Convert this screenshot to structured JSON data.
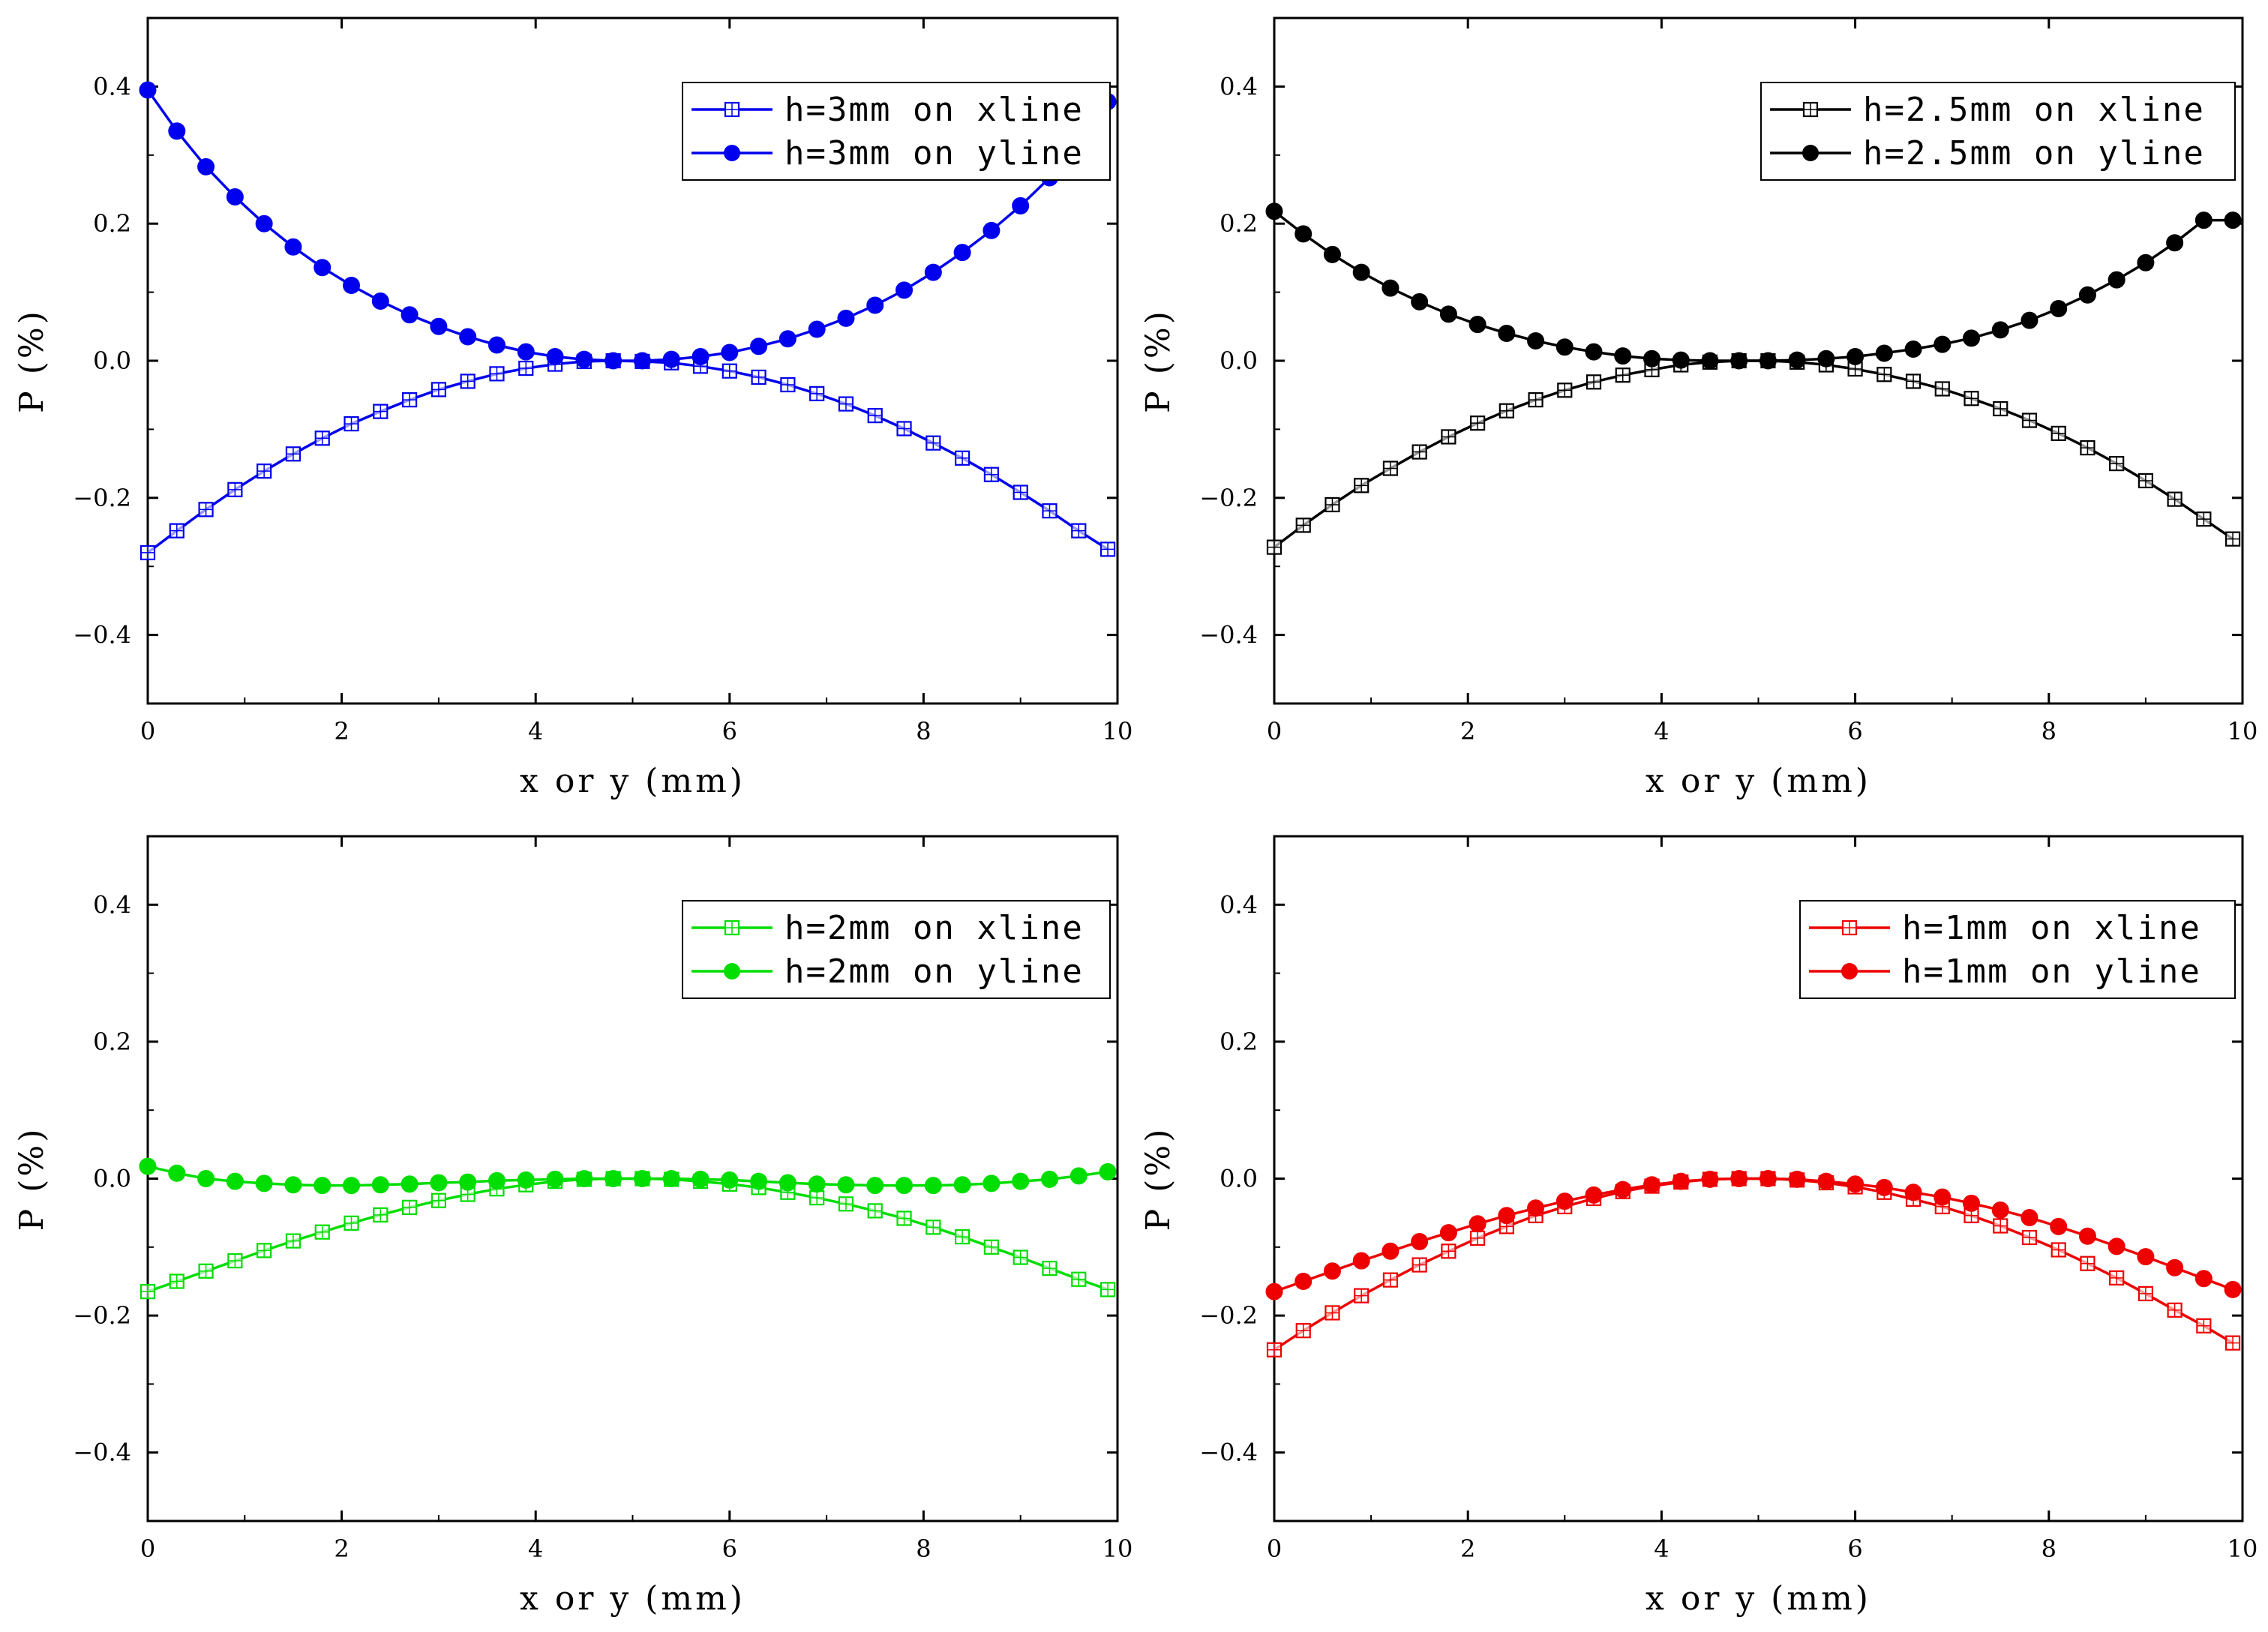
{
  "chart_data": [
    {
      "type": "line",
      "title": "",
      "xlabel": "x or y (mm)",
      "ylabel": "P (%)",
      "xlim": [
        0,
        10
      ],
      "ylim": [
        -0.5,
        0.5
      ],
      "xticks": [
        0,
        2,
        4,
        6,
        8,
        10
      ],
      "xtick_labels": [
        "0",
        "2",
        "4",
        "6",
        "8",
        "10"
      ],
      "yticks": [
        -0.4,
        -0.2,
        0.0,
        0.2,
        0.4
      ],
      "ytick_labels": [
        "−0.4",
        "−0.2",
        "0.0",
        "0.2",
        "0.4"
      ],
      "color": "#0000ee",
      "legend_position": "top-right",
      "series": [
        {
          "name": "h=3mm on xline",
          "marker": "open-square",
          "x": [
            0,
            0.3,
            0.6,
            0.9,
            1.2,
            1.5,
            1.8,
            2.1,
            2.4,
            2.7,
            3.0,
            3.3,
            3.6,
            3.9,
            4.2,
            4.5,
            4.8,
            5.1,
            5.4,
            5.7,
            6.0,
            6.3,
            6.6,
            6.9,
            7.2,
            7.5,
            7.8,
            8.1,
            8.4,
            8.7,
            9.0,
            9.3,
            9.6,
            9.9
          ],
          "y": [
            -0.28,
            -0.248,
            -0.217,
            -0.188,
            -0.161,
            -0.136,
            -0.113,
            -0.092,
            -0.074,
            -0.057,
            -0.042,
            -0.03,
            -0.019,
            -0.011,
            -0.005,
            -0.001,
            0.0,
            -0.001,
            -0.003,
            -0.008,
            -0.015,
            -0.024,
            -0.035,
            -0.048,
            -0.063,
            -0.08,
            -0.099,
            -0.12,
            -0.142,
            -0.166,
            -0.192,
            -0.219,
            -0.248,
            -0.275
          ]
        },
        {
          "name": "h=3mm on yline",
          "marker": "filled-circle",
          "x": [
            0,
            0.3,
            0.6,
            0.9,
            1.2,
            1.5,
            1.8,
            2.1,
            2.4,
            2.7,
            3.0,
            3.3,
            3.6,
            3.9,
            4.2,
            4.5,
            4.8,
            5.1,
            5.4,
            5.7,
            6.0,
            6.3,
            6.6,
            6.9,
            7.2,
            7.5,
            7.8,
            8.1,
            8.4,
            8.7,
            9.0,
            9.3,
            9.6,
            9.9
          ],
          "y": [
            0.395,
            0.335,
            0.283,
            0.239,
            0.2,
            0.166,
            0.136,
            0.11,
            0.087,
            0.067,
            0.05,
            0.035,
            0.023,
            0.013,
            0.006,
            0.002,
            0.0,
            0.0,
            0.002,
            0.006,
            0.012,
            0.021,
            0.032,
            0.046,
            0.062,
            0.081,
            0.103,
            0.129,
            0.158,
            0.19,
            0.226,
            0.267,
            0.318,
            0.378
          ]
        }
      ]
    },
    {
      "type": "line",
      "title": "",
      "xlabel": "x or y (mm)",
      "ylabel": "P (%)",
      "xlim": [
        0,
        10
      ],
      "ylim": [
        -0.5,
        0.5
      ],
      "xticks": [
        0,
        2,
        4,
        6,
        8,
        10
      ],
      "xtick_labels": [
        "0",
        "2",
        "4",
        "6",
        "8",
        "10"
      ],
      "yticks": [
        -0.4,
        -0.2,
        0.0,
        0.2,
        0.4
      ],
      "ytick_labels": [
        "−0.4",
        "−0.2",
        "0.0",
        "0.2",
        "0.4"
      ],
      "color": "#000000",
      "legend_position": "top-right",
      "series": [
        {
          "name": "h=2.5mm on xline",
          "marker": "open-square",
          "x": [
            0,
            0.3,
            0.6,
            0.9,
            1.2,
            1.5,
            1.8,
            2.1,
            2.4,
            2.7,
            3.0,
            3.3,
            3.6,
            3.9,
            4.2,
            4.5,
            4.8,
            5.1,
            5.4,
            5.7,
            6.0,
            6.3,
            6.6,
            6.9,
            7.2,
            7.5,
            7.8,
            8.1,
            8.4,
            8.7,
            9.0,
            9.3,
            9.6,
            9.9
          ],
          "y": [
            -0.272,
            -0.24,
            -0.21,
            -0.182,
            -0.157,
            -0.133,
            -0.111,
            -0.091,
            -0.073,
            -0.057,
            -0.043,
            -0.031,
            -0.021,
            -0.013,
            -0.006,
            -0.002,
            0.0,
            0.0,
            -0.002,
            -0.006,
            -0.012,
            -0.02,
            -0.03,
            -0.041,
            -0.055,
            -0.07,
            -0.087,
            -0.106,
            -0.127,
            -0.15,
            -0.175,
            -0.202,
            -0.231,
            -0.26
          ]
        },
        {
          "name": "h=2.5mm on yline",
          "marker": "filled-circle",
          "x": [
            0,
            0.3,
            0.6,
            0.9,
            1.2,
            1.5,
            1.8,
            2.1,
            2.4,
            2.7,
            3.0,
            3.3,
            3.6,
            3.9,
            4.2,
            4.5,
            4.8,
            5.1,
            5.4,
            5.7,
            6.0,
            6.3,
            6.6,
            6.9,
            7.2,
            7.5,
            7.8,
            8.1,
            8.4,
            8.7,
            9.0,
            9.3,
            9.6,
            9.9
          ],
          "y": [
            0.218,
            0.185,
            0.155,
            0.129,
            0.106,
            0.086,
            0.068,
            0.053,
            0.04,
            0.029,
            0.02,
            0.013,
            0.007,
            0.003,
            0.001,
            0.0,
            0.0,
            0.0,
            0.001,
            0.003,
            0.006,
            0.011,
            0.017,
            0.024,
            0.033,
            0.045,
            0.059,
            0.076,
            0.096,
            0.118,
            0.143,
            0.172,
            0.205,
            0.205
          ]
        }
      ]
    },
    {
      "type": "line",
      "title": "",
      "xlabel": "x or y (mm)",
      "ylabel": "P (%)",
      "xlim": [
        0,
        10
      ],
      "ylim": [
        -0.5,
        0.5
      ],
      "xticks": [
        0,
        2,
        4,
        6,
        8,
        10
      ],
      "xtick_labels": [
        "0",
        "2",
        "4",
        "6",
        "8",
        "10"
      ],
      "yticks": [
        -0.4,
        -0.2,
        0.0,
        0.2,
        0.4
      ],
      "ytick_labels": [
        "−0.4",
        "−0.2",
        "0.0",
        "0.2",
        "0.4"
      ],
      "color": "#00dd00",
      "legend_position": "top-right",
      "series": [
        {
          "name": "h=2mm on xline",
          "marker": "open-square",
          "x": [
            0,
            0.3,
            0.6,
            0.9,
            1.2,
            1.5,
            1.8,
            2.1,
            2.4,
            2.7,
            3.0,
            3.3,
            3.6,
            3.9,
            4.2,
            4.5,
            4.8,
            5.1,
            5.4,
            5.7,
            6.0,
            6.3,
            6.6,
            6.9,
            7.2,
            7.5,
            7.8,
            8.1,
            8.4,
            8.7,
            9.0,
            9.3,
            9.6,
            9.9
          ],
          "y": [
            -0.165,
            -0.15,
            -0.135,
            -0.12,
            -0.105,
            -0.091,
            -0.078,
            -0.065,
            -0.053,
            -0.042,
            -0.032,
            -0.023,
            -0.015,
            -0.009,
            -0.004,
            -0.001,
            0.0,
            0.0,
            -0.001,
            -0.004,
            -0.008,
            -0.013,
            -0.02,
            -0.028,
            -0.037,
            -0.047,
            -0.058,
            -0.071,
            -0.085,
            -0.1,
            -0.115,
            -0.131,
            -0.147,
            -0.162
          ]
        },
        {
          "name": "h=2mm on yline",
          "marker": "filled-circle",
          "x": [
            0,
            0.3,
            0.6,
            0.9,
            1.2,
            1.5,
            1.8,
            2.1,
            2.4,
            2.7,
            3.0,
            3.3,
            3.6,
            3.9,
            4.2,
            4.5,
            4.8,
            5.1,
            5.4,
            5.7,
            6.0,
            6.3,
            6.6,
            6.9,
            7.2,
            7.5,
            7.8,
            8.1,
            8.4,
            8.7,
            9.0,
            9.3,
            9.6,
            9.9
          ],
          "y": [
            0.018,
            0.008,
            0.0,
            -0.004,
            -0.007,
            -0.009,
            -0.01,
            -0.01,
            -0.009,
            -0.008,
            -0.006,
            -0.005,
            -0.003,
            -0.002,
            -0.001,
            0.0,
            0.0,
            0.0,
            0.0,
            -0.001,
            -0.002,
            -0.004,
            -0.006,
            -0.008,
            -0.009,
            -0.01,
            -0.01,
            -0.01,
            -0.009,
            -0.007,
            -0.004,
            -0.001,
            0.004,
            0.01
          ]
        }
      ]
    },
    {
      "type": "line",
      "title": "",
      "xlabel": "x or y (mm)",
      "ylabel": "P (%)",
      "xlim": [
        0,
        10
      ],
      "ylim": [
        -0.5,
        0.5
      ],
      "xticks": [
        0,
        2,
        4,
        6,
        8,
        10
      ],
      "xtick_labels": [
        "0",
        "2",
        "4",
        "6",
        "8",
        "10"
      ],
      "yticks": [
        -0.4,
        -0.2,
        0.0,
        0.2,
        0.4
      ],
      "ytick_labels": [
        "−0.4",
        "−0.2",
        "0.0",
        "0.2",
        "0.4"
      ],
      "color": "#ee0000",
      "legend_position": "top-right",
      "series": [
        {
          "name": "h=1mm on xline",
          "marker": "open-square",
          "x": [
            0,
            0.3,
            0.6,
            0.9,
            1.2,
            1.5,
            1.8,
            2.1,
            2.4,
            2.7,
            3.0,
            3.3,
            3.6,
            3.9,
            4.2,
            4.5,
            4.8,
            5.1,
            5.4,
            5.7,
            6.0,
            6.3,
            6.6,
            6.9,
            7.2,
            7.5,
            7.8,
            8.1,
            8.4,
            8.7,
            9.0,
            9.3,
            9.6,
            9.9
          ],
          "y": [
            -0.25,
            -0.222,
            -0.196,
            -0.171,
            -0.148,
            -0.126,
            -0.106,
            -0.087,
            -0.07,
            -0.054,
            -0.041,
            -0.029,
            -0.019,
            -0.011,
            -0.005,
            -0.001,
            0.0,
            0.0,
            -0.002,
            -0.006,
            -0.012,
            -0.02,
            -0.03,
            -0.041,
            -0.054,
            -0.069,
            -0.086,
            -0.104,
            -0.124,
            -0.145,
            -0.168,
            -0.192,
            -0.215,
            -0.24
          ]
        },
        {
          "name": "h=1mm on yline",
          "marker": "filled-circle",
          "x": [
            0,
            0.3,
            0.6,
            0.9,
            1.2,
            1.5,
            1.8,
            2.1,
            2.4,
            2.7,
            3.0,
            3.3,
            3.6,
            3.9,
            4.2,
            4.5,
            4.8,
            5.1,
            5.4,
            5.7,
            6.0,
            6.3,
            6.6,
            6.9,
            7.2,
            7.5,
            7.8,
            8.1,
            8.4,
            8.7,
            9.0,
            9.3,
            9.6,
            9.9
          ],
          "y": [
            -0.165,
            -0.15,
            -0.135,
            -0.12,
            -0.106,
            -0.092,
            -0.079,
            -0.066,
            -0.054,
            -0.043,
            -0.033,
            -0.024,
            -0.016,
            -0.009,
            -0.004,
            -0.001,
            0.0,
            0.0,
            -0.001,
            -0.004,
            -0.008,
            -0.013,
            -0.02,
            -0.027,
            -0.036,
            -0.046,
            -0.057,
            -0.07,
            -0.084,
            -0.099,
            -0.114,
            -0.13,
            -0.146,
            -0.162
          ]
        }
      ]
    }
  ]
}
